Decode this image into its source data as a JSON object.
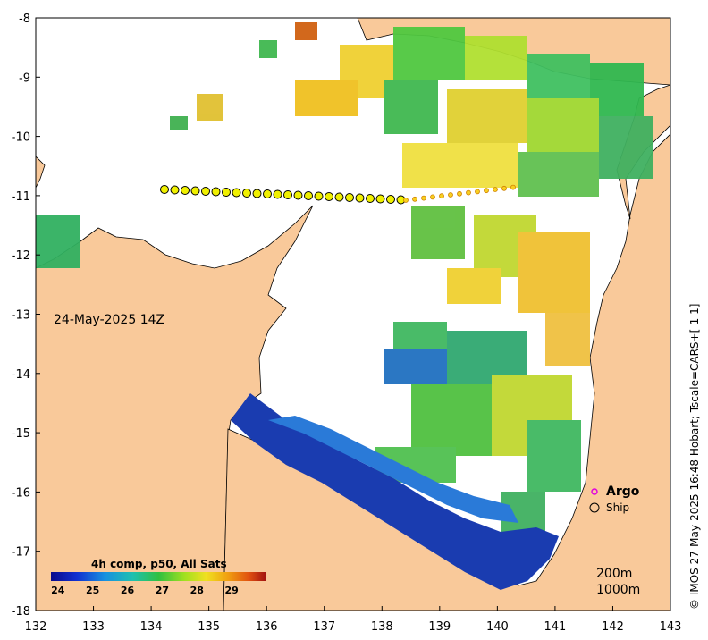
{
  "map": {
    "x_ticks": [
      "132",
      "133",
      "134",
      "135",
      "136",
      "137",
      "138",
      "139",
      "140",
      "141",
      "142",
      "143"
    ],
    "y_ticks": [
      "-8",
      "-9",
      "-10",
      "-11",
      "-12",
      "-13",
      "-14",
      "-15",
      "-16",
      "-17",
      "-18"
    ],
    "date_label": "24-May-2025 14Z",
    "depth_contours": [
      "200m",
      "1000m"
    ],
    "colors": {
      "land": "#f9c99a",
      "ocean": "#ffffff",
      "coast": "#000000",
      "argo": "#e000e0",
      "ship_fill": "#f0f000"
    }
  },
  "legend": {
    "argo": "Argo",
    "ship": "Ship"
  },
  "colorbar": {
    "title": "4h comp, p50, All Sats",
    "ticks": [
      "24",
      "25",
      "26",
      "27",
      "28",
      "29"
    ],
    "range": [
      23.8,
      30.0
    ]
  },
  "credit": "© IMOS 27-May-2025 16:48 Hobart; Tscale=CARS+[-1 1]"
}
